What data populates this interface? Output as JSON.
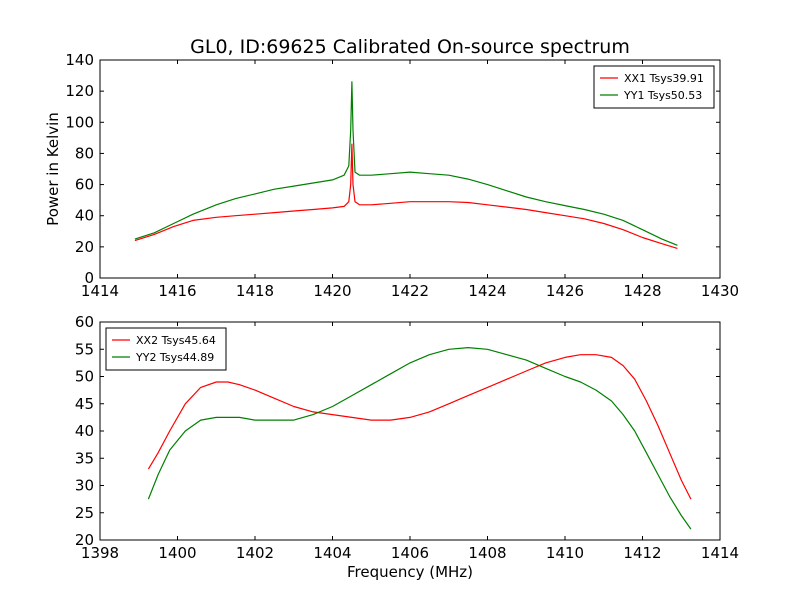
{
  "figure_title": "GL0, ID:69625 Calibrated On-source spectrum",
  "chart_data": [
    {
      "type": "line",
      "title": "GL0, ID:69625 Calibrated On-source spectrum",
      "xlabel": "",
      "ylabel": "Power in Kelvin",
      "xlim": [
        1414,
        1430
      ],
      "ylim": [
        0,
        140
      ],
      "xticks": [
        1414,
        1416,
        1418,
        1420,
        1422,
        1424,
        1426,
        1428,
        1430
      ],
      "yticks": [
        0,
        20,
        40,
        60,
        80,
        100,
        120,
        140
      ],
      "grid": false,
      "legend_position": "top-right",
      "series": [
        {
          "name": "XX1 Tsys39.91",
          "color": "#ff0000",
          "x": [
            1414.9,
            1415.4,
            1415.9,
            1416.4,
            1417.0,
            1417.5,
            1418.0,
            1418.5,
            1419.0,
            1419.5,
            1420.0,
            1420.3,
            1420.42,
            1420.47,
            1420.5,
            1420.53,
            1420.58,
            1420.7,
            1421.0,
            1421.5,
            1422.0,
            1422.5,
            1423.0,
            1423.5,
            1424.0,
            1424.5,
            1425.0,
            1425.5,
            1426.0,
            1426.5,
            1427.0,
            1427.5,
            1428.0,
            1428.5,
            1428.9
          ],
          "y": [
            24,
            28,
            33,
            37,
            39,
            40,
            41,
            42,
            43,
            44,
            45,
            46,
            49,
            60,
            86,
            60,
            49,
            47,
            47,
            48,
            49,
            49,
            49,
            48.5,
            47,
            45.5,
            44,
            42,
            40,
            38,
            35,
            31,
            26,
            22,
            19
          ]
        },
        {
          "name": "YY1 Tsys50.53",
          "color": "#008000",
          "x": [
            1414.9,
            1415.4,
            1415.9,
            1416.4,
            1417.0,
            1417.5,
            1418.0,
            1418.5,
            1419.0,
            1419.5,
            1420.0,
            1420.3,
            1420.42,
            1420.47,
            1420.5,
            1420.53,
            1420.58,
            1420.7,
            1421.0,
            1421.5,
            1422.0,
            1422.5,
            1423.0,
            1423.5,
            1424.0,
            1424.5,
            1425.0,
            1425.5,
            1426.0,
            1426.5,
            1427.0,
            1427.5,
            1428.0,
            1428.5,
            1428.9
          ],
          "y": [
            25,
            29,
            35,
            41,
            47,
            51,
            54,
            57,
            59,
            61,
            63,
            66,
            72,
            95,
            126,
            95,
            68,
            66,
            66,
            67,
            68,
            67,
            66,
            63.5,
            60,
            56,
            52,
            49,
            46.5,
            44,
            41,
            37,
            31,
            25,
            21
          ]
        }
      ]
    },
    {
      "type": "line",
      "title": "",
      "xlabel": "Frequency (MHz)",
      "ylabel": "",
      "xlim": [
        1398,
        1414
      ],
      "ylim": [
        20,
        60
      ],
      "xticks": [
        1398,
        1400,
        1402,
        1404,
        1406,
        1408,
        1410,
        1412,
        1414
      ],
      "yticks": [
        20,
        25,
        30,
        35,
        40,
        45,
        50,
        55,
        60
      ],
      "grid": false,
      "legend_position": "top-left",
      "series": [
        {
          "name": "XX2 Tsys45.64",
          "color": "#ff0000",
          "x": [
            1399.25,
            1399.5,
            1399.8,
            1400.2,
            1400.6,
            1401.0,
            1401.3,
            1401.6,
            1402.0,
            1402.5,
            1403.0,
            1403.5,
            1404.0,
            1404.5,
            1405.0,
            1405.5,
            1406.0,
            1406.5,
            1407.0,
            1407.5,
            1408.0,
            1408.5,
            1409.0,
            1409.5,
            1410.0,
            1410.4,
            1410.8,
            1411.2,
            1411.5,
            1411.8,
            1412.1,
            1412.4,
            1412.7,
            1413.0,
            1413.25
          ],
          "y": [
            33,
            36,
            40,
            45,
            48,
            49,
            49,
            48.5,
            47.5,
            46,
            44.5,
            43.5,
            43,
            42.5,
            42,
            42,
            42.5,
            43.5,
            45,
            46.5,
            48,
            49.5,
            51,
            52.5,
            53.5,
            54,
            54,
            53.5,
            52,
            49.5,
            45.5,
            41,
            36,
            31,
            27.5
          ]
        },
        {
          "name": "YY2 Tsys44.89",
          "color": "#008000",
          "x": [
            1399.25,
            1399.5,
            1399.8,
            1400.2,
            1400.6,
            1401.0,
            1401.3,
            1401.6,
            1402.0,
            1402.5,
            1403.0,
            1403.5,
            1404.0,
            1404.5,
            1405.0,
            1405.5,
            1406.0,
            1406.5,
            1407.0,
            1407.5,
            1408.0,
            1408.5,
            1409.0,
            1409.5,
            1410.0,
            1410.4,
            1410.8,
            1411.2,
            1411.5,
            1411.8,
            1412.1,
            1412.4,
            1412.7,
            1413.0,
            1413.25
          ],
          "y": [
            27.5,
            32,
            36.5,
            40,
            42,
            42.5,
            42.5,
            42.5,
            42,
            42,
            42,
            43,
            44.5,
            46.5,
            48.5,
            50.5,
            52.5,
            54,
            55,
            55.3,
            55,
            54,
            53,
            51.5,
            50,
            49,
            47.5,
            45.5,
            43,
            40,
            36,
            32,
            28,
            24.5,
            22
          ]
        }
      ]
    }
  ]
}
